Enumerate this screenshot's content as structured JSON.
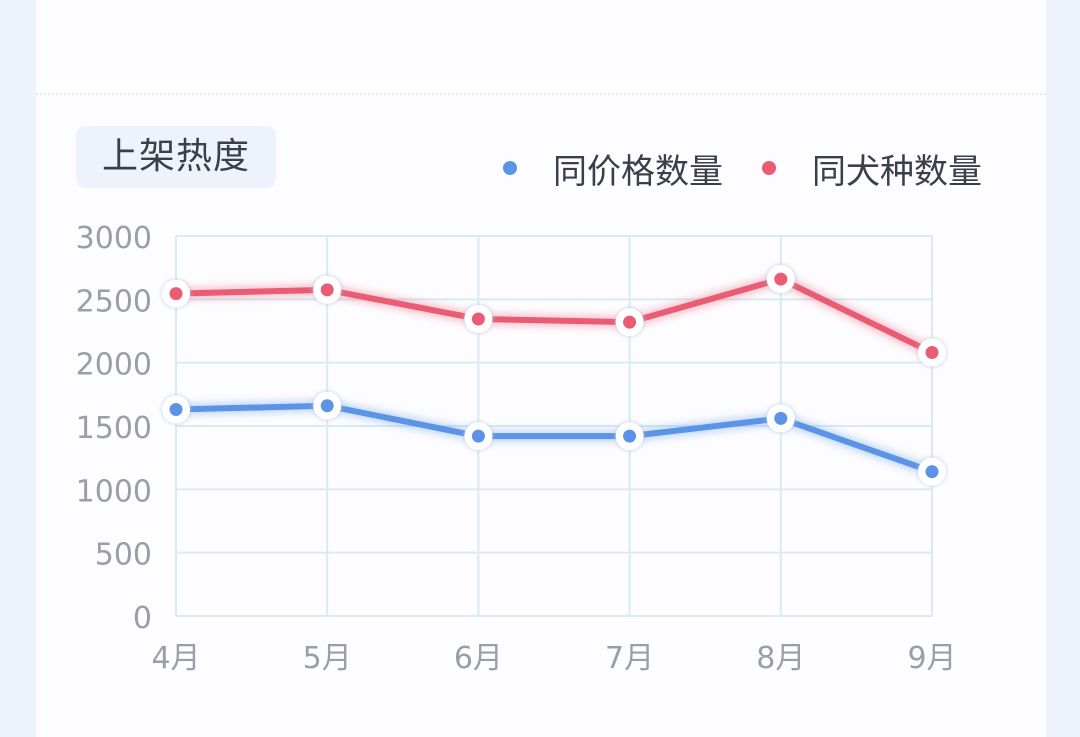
{
  "card": {
    "title": "上架热度"
  },
  "colors": {
    "blue": "#5b93e6",
    "red": "#e95c74",
    "grid": "#d9eaf4",
    "tick": "#9a9ea8"
  },
  "chart_data": {
    "type": "line",
    "categories": [
      "4月",
      "5月",
      "6月",
      "7月",
      "8月",
      "9月"
    ],
    "ylim": [
      0,
      3000
    ],
    "yticks": [
      "0",
      "500",
      "1000",
      "1500",
      "2000",
      "2500",
      "3000"
    ],
    "grid": true,
    "legend_position": "top-right",
    "series": [
      {
        "name": "同价格数量",
        "color": "#5b93e6",
        "values": [
          1630,
          1660,
          1420,
          1420,
          1560,
          1140
        ]
      },
      {
        "name": "同犬种数量",
        "color": "#e95c74",
        "values": [
          2545,
          2575,
          2345,
          2320,
          2660,
          2080
        ]
      }
    ]
  }
}
